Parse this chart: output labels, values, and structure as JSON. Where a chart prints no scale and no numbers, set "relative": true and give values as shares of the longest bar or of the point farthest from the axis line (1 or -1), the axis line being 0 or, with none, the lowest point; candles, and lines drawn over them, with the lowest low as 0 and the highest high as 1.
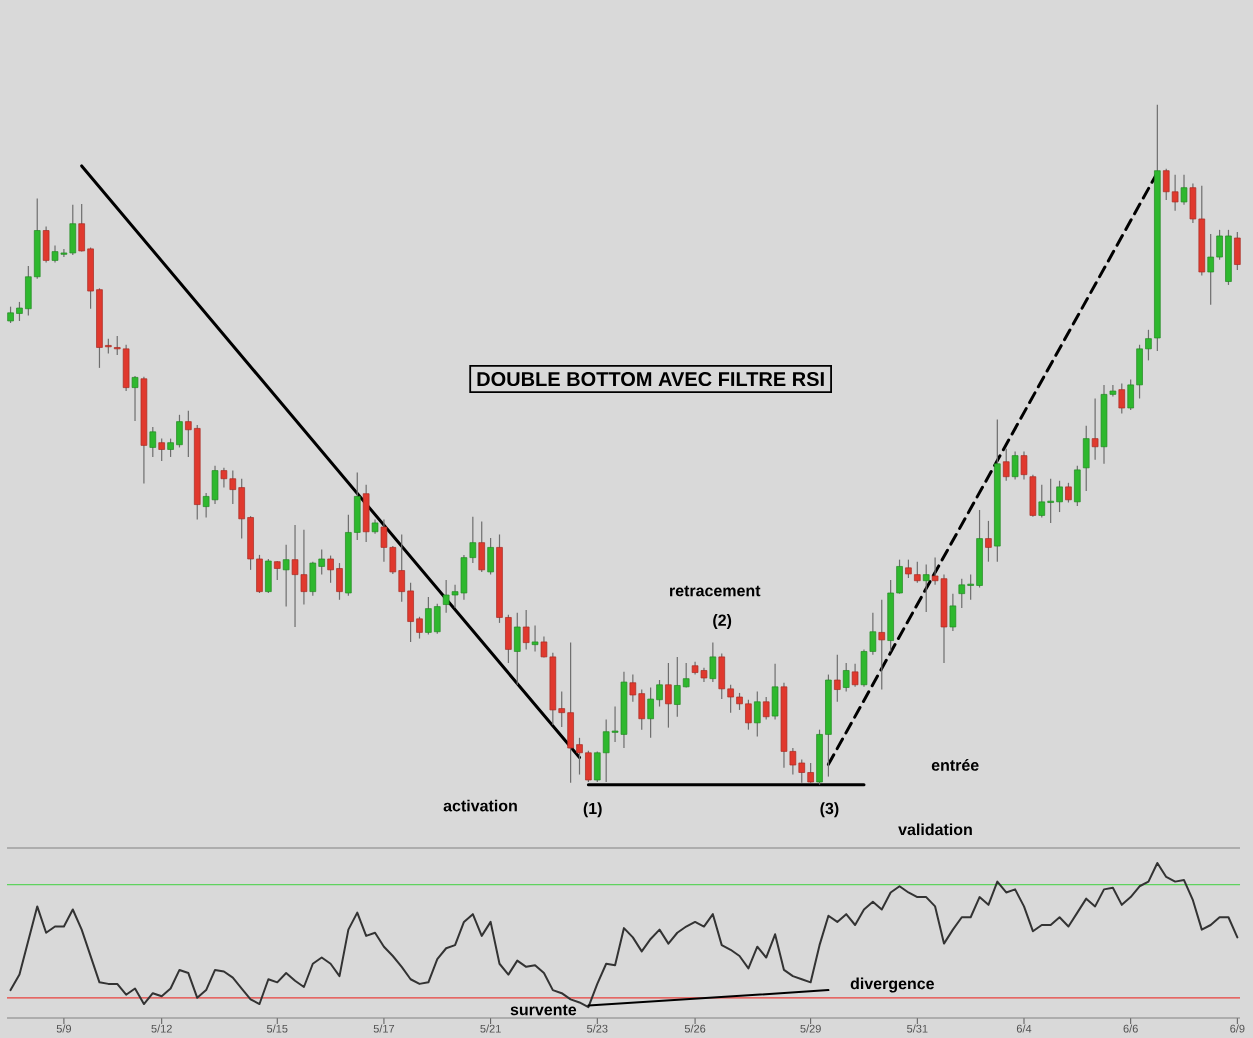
{
  "chart_data": [
    {
      "type": "candlestick",
      "title": "DOUBLE BOTTOM AVEC FILTRE RSI",
      "relative": true,
      "tick_labels": false,
      "categories": [
        null,
        null,
        null,
        null,
        null,
        null,
        null,
        null,
        null,
        null,
        null,
        null,
        null,
        null,
        null,
        null,
        null,
        null,
        null,
        null,
        null,
        null,
        null,
        null,
        null,
        null,
        null,
        null,
        null,
        null,
        null,
        null,
        null,
        null,
        null,
        null,
        null,
        null,
        null,
        null,
        null,
        null,
        null,
        null,
        null,
        null,
        null,
        null,
        null,
        null,
        null,
        null,
        null,
        null,
        null,
        null,
        null,
        null,
        null,
        null,
        null,
        null,
        null,
        null,
        null,
        null,
        null,
        null,
        null,
        null,
        null,
        null,
        null,
        null,
        null,
        null,
        null,
        null,
        null,
        null,
        null,
        null,
        null,
        null,
        null,
        null,
        null,
        null,
        null,
        null,
        null,
        null,
        null,
        null,
        null,
        null,
        null,
        null,
        null,
        null,
        null,
        null,
        null,
        null,
        null,
        null,
        null,
        null,
        null,
        null,
        null,
        null,
        null,
        null,
        null,
        null,
        null,
        null,
        null,
        null,
        null,
        null,
        null,
        null,
        null,
        null,
        null,
        null,
        null,
        null,
        null,
        null,
        null,
        null,
        null,
        null,
        null,
        null,
        null
      ],
      "ohlc": [
        [
          0.682,
          0.703,
          0.679,
          0.694
        ],
        [
          0.693,
          0.71,
          0.682,
          0.701
        ],
        [
          0.7,
          0.763,
          0.69,
          0.747
        ],
        [
          0.747,
          0.862,
          0.744,
          0.815
        ],
        [
          0.815,
          0.821,
          0.768,
          0.771
        ],
        [
          0.771,
          0.793,
          0.768,
          0.784
        ],
        [
          0.78,
          0.788,
          0.776,
          0.782
        ],
        [
          0.782,
          0.853,
          0.779,
          0.825
        ],
        [
          0.825,
          0.854,
          0.784,
          0.785
        ],
        [
          0.788,
          0.79,
          0.7,
          0.726
        ],
        [
          0.728,
          0.73,
          0.613,
          0.643
        ],
        [
          0.646,
          0.656,
          0.634,
          0.644
        ],
        [
          0.643,
          0.66,
          0.632,
          0.641
        ],
        [
          0.641,
          0.647,
          0.579,
          0.584
        ],
        [
          0.584,
          0.601,
          0.535,
          0.599
        ],
        [
          0.597,
          0.6,
          0.443,
          0.499
        ],
        [
          0.496,
          0.526,
          0.482,
          0.519
        ],
        [
          0.503,
          0.509,
          0.476,
          0.493
        ],
        [
          0.493,
          0.509,
          0.482,
          0.503
        ],
        [
          0.5,
          0.544,
          0.496,
          0.534
        ],
        [
          0.534,
          0.55,
          0.482,
          0.522
        ],
        [
          0.524,
          0.529,
          0.39,
          0.412
        ],
        [
          0.409,
          0.429,
          0.393,
          0.424
        ],
        [
          0.419,
          0.469,
          0.413,
          0.462
        ],
        [
          0.462,
          0.466,
          0.437,
          0.45
        ],
        [
          0.45,
          0.462,
          0.413,
          0.434
        ],
        [
          0.437,
          0.45,
          0.362,
          0.391
        ],
        [
          0.393,
          0.395,
          0.316,
          0.332
        ],
        [
          0.332,
          0.338,
          0.282,
          0.284
        ],
        [
          0.284,
          0.332,
          0.282,
          0.329
        ],
        [
          0.328,
          0.329,
          0.301,
          0.318
        ],
        [
          0.316,
          0.353,
          0.262,
          0.331
        ],
        [
          0.331,
          0.382,
          0.232,
          0.309
        ],
        [
          0.309,
          0.375,
          0.265,
          0.284
        ],
        [
          0.284,
          0.328,
          0.278,
          0.326
        ],
        [
          0.321,
          0.346,
          0.309,
          0.332
        ],
        [
          0.332,
          0.337,
          0.297,
          0.316
        ],
        [
          0.318,
          0.326,
          0.272,
          0.284
        ],
        [
          0.282,
          0.397,
          0.278,
          0.371
        ],
        [
          0.371,
          0.459,
          0.36,
          0.424
        ],
        [
          0.428,
          0.441,
          0.357,
          0.372
        ],
        [
          0.372,
          0.39,
          0.369,
          0.385
        ],
        [
          0.379,
          0.39,
          0.328,
          0.349
        ],
        [
          0.349,
          0.351,
          0.31,
          0.313
        ],
        [
          0.315,
          0.368,
          0.269,
          0.284
        ],
        [
          0.285,
          0.297,
          0.21,
          0.24
        ],
        [
          0.244,
          0.247,
          0.215,
          0.224
        ],
        [
          0.224,
          0.276,
          0.221,
          0.259
        ],
        [
          0.225,
          0.266,
          0.222,
          0.262
        ],
        [
          0.265,
          0.301,
          0.253,
          0.279
        ],
        [
          0.279,
          0.294,
          0.26,
          0.284
        ],
        [
          0.282,
          0.338,
          0.272,
          0.334
        ],
        [
          0.334,
          0.394,
          0.326,
          0.356
        ],
        [
          0.356,
          0.387,
          0.313,
          0.316
        ],
        [
          0.313,
          0.363,
          0.309,
          0.349
        ],
        [
          0.349,
          0.368,
          0.238,
          0.246
        ],
        [
          0.246,
          0.25,
          0.179,
          0.199
        ],
        [
          0.196,
          0.253,
          0.147,
          0.232
        ],
        [
          0.232,
          0.257,
          0.199,
          0.209
        ],
        [
          0.206,
          0.234,
          0.196,
          0.21
        ],
        [
          0.21,
          0.218,
          0.187,
          0.188
        ],
        [
          0.188,
          0.194,
          0.088,
          0.11
        ],
        [
          0.112,
          0.137,
          0.085,
          0.106
        ],
        [
          0.106,
          0.209,
          0.003,
          0.054
        ],
        [
          0.059,
          0.069,
          0.015,
          0.047
        ],
        [
          0.047,
          0.05,
          0.004,
          0.007
        ],
        [
          0.007,
          0.049,
          0.004,
          0.047
        ],
        [
          0.047,
          0.096,
          0.004,
          0.078
        ],
        [
          0.077,
          0.115,
          0.063,
          0.079
        ],
        [
          0.074,
          0.166,
          0.054,
          0.151
        ],
        [
          0.15,
          0.162,
          0.122,
          0.132
        ],
        [
          0.134,
          0.14,
          0.081,
          0.097
        ],
        [
          0.097,
          0.143,
          0.069,
          0.126
        ],
        [
          0.125,
          0.154,
          0.115,
          0.147
        ],
        [
          0.147,
          0.179,
          0.084,
          0.119
        ],
        [
          0.118,
          0.188,
          0.1,
          0.146
        ],
        [
          0.144,
          0.179,
          0.143,
          0.156
        ],
        [
          0.175,
          0.181,
          0.162,
          0.165
        ],
        [
          0.168,
          0.172,
          0.151,
          0.157
        ],
        [
          0.156,
          0.209,
          0.151,
          0.188
        ],
        [
          0.188,
          0.193,
          0.126,
          0.141
        ],
        [
          0.141,
          0.147,
          0.106,
          0.129
        ],
        [
          0.129,
          0.135,
          0.11,
          0.119
        ],
        [
          0.119,
          0.125,
          0.081,
          0.091
        ],
        [
          0.091,
          0.137,
          0.071,
          0.122
        ],
        [
          0.122,
          0.129,
          0.096,
          0.1
        ],
        [
          0.101,
          0.178,
          0.096,
          0.144
        ],
        [
          0.144,
          0.15,
          0.025,
          0.049
        ],
        [
          0.049,
          0.054,
          0.015,
          0.029
        ],
        [
          0.032,
          0.037,
          0.003,
          0.018
        ],
        [
          0.018,
          0.032,
          0.003,
          0.004
        ],
        [
          0.004,
          0.081,
          0,
          0.074
        ],
        [
          0.074,
          0.162,
          0.012,
          0.154
        ],
        [
          0.154,
          0.191,
          0.122,
          0.14
        ],
        [
          0.143,
          0.179,
          0.137,
          0.168
        ],
        [
          0.166,
          0.178,
          0.144,
          0.147
        ],
        [
          0.147,
          0.199,
          0.144,
          0.196
        ],
        [
          0.196,
          0.253,
          0.191,
          0.225
        ],
        [
          0.224,
          0.272,
          0.14,
          0.213
        ],
        [
          0.212,
          0.301,
          0.196,
          0.282
        ],
        [
          0.282,
          0.331,
          0.281,
          0.321
        ],
        [
          0.319,
          0.331,
          0.304,
          0.31
        ],
        [
          0.309,
          0.328,
          0.297,
          0.3
        ],
        [
          0.3,
          0.324,
          0.254,
          0.309
        ],
        [
          0.307,
          0.334,
          0.294,
          0.3
        ],
        [
          0.303,
          0.309,
          0.179,
          0.232
        ],
        [
          0.232,
          0.281,
          0.226,
          0.263
        ],
        [
          0.281,
          0.303,
          0.26,
          0.294
        ],
        [
          0.293,
          0.309,
          0.272,
          0.295
        ],
        [
          0.293,
          0.404,
          0.29,
          0.362
        ],
        [
          0.362,
          0.388,
          0.328,
          0.349
        ],
        [
          0.351,
          0.537,
          0.328,
          0.472
        ],
        [
          0.475,
          0.494,
          0.447,
          0.453
        ],
        [
          0.453,
          0.49,
          0.449,
          0.484
        ],
        [
          0.484,
          0.49,
          0.449,
          0.456
        ],
        [
          0.453,
          0.456,
          0.394,
          0.396
        ],
        [
          0.396,
          0.441,
          0.393,
          0.416
        ],
        [
          0.415,
          0.45,
          0.385,
          0.417
        ],
        [
          0.416,
          0.447,
          0.401,
          0.438
        ],
        [
          0.438,
          0.444,
          0.415,
          0.419
        ],
        [
          0.416,
          0.469,
          0.41,
          0.463
        ],
        [
          0.466,
          0.528,
          0.432,
          0.509
        ],
        [
          0.509,
          0.568,
          0.478,
          0.497
        ],
        [
          0.497,
          0.588,
          0.472,
          0.574
        ],
        [
          0.574,
          0.588,
          0.571,
          0.579
        ],
        [
          0.581,
          0.59,
          0.546,
          0.554
        ],
        [
          0.554,
          0.596,
          0.551,
          0.588
        ],
        [
          0.588,
          0.647,
          0.568,
          0.641
        ],
        [
          0.641,
          0.669,
          0.624,
          0.656
        ],
        [
          0.657,
          1.0,
          0.638,
          0.903
        ],
        [
          0.903,
          0.906,
          0.86,
          0.872
        ],
        [
          0.872,
          0.897,
          0.844,
          0.857
        ],
        [
          0.857,
          0.897,
          0.853,
          0.878
        ],
        [
          0.878,
          0.884,
          0.826,
          0.832
        ],
        [
          0.832,
          0.881,
          0.749,
          0.754
        ],
        [
          0.754,
          0.81,
          0.706,
          0.776
        ],
        [
          0.776,
          0.816,
          0.772,
          0.807
        ],
        [
          0.74,
          0.816,
          0.735,
          0.807
        ],
        [
          0.804,
          0.813,
          0.757,
          0.765
        ]
      ],
      "colors": [
        "#2eb82e",
        "#2eb82e",
        "#2eb82e",
        "#2eb82e",
        "#e0392e",
        "#2eb82e",
        "#2eb82e",
        "#2eb82e",
        "#e0392e",
        "#e0392e",
        "#e0392e",
        "#e0392e",
        "#e0392e",
        "#e0392e",
        "#2eb82e",
        "#e0392e",
        "#2eb82e",
        "#e0392e",
        "#2eb82e",
        "#2eb82e",
        "#e0392e",
        "#e0392e",
        "#2eb82e",
        "#2eb82e",
        "#e0392e",
        "#e0392e",
        "#e0392e",
        "#e0392e",
        "#e0392e",
        "#2eb82e",
        "#e0392e",
        "#2eb82e",
        "#e0392e",
        "#e0392e",
        "#2eb82e",
        "#2eb82e",
        "#e0392e",
        "#e0392e",
        "#2eb82e",
        "#2eb82e",
        "#e0392e",
        "#2eb82e",
        "#e0392e",
        "#e0392e",
        "#e0392e",
        "#e0392e",
        "#e0392e",
        "#2eb82e",
        "#2eb82e",
        "#2eb82e",
        "#2eb82e",
        "#2eb82e",
        "#2eb82e",
        "#e0392e",
        "#2eb82e",
        "#e0392e",
        "#e0392e",
        "#2eb82e",
        "#e0392e",
        "#2eb82e",
        "#e0392e",
        "#e0392e",
        "#e0392e",
        "#e0392e",
        "#e0392e",
        "#e0392e",
        "#2eb82e",
        "#2eb82e",
        "#2eb82e",
        "#2eb82e",
        "#e0392e",
        "#e0392e",
        "#2eb82e",
        "#2eb82e",
        "#e0392e",
        "#2eb82e",
        "#2eb82e",
        "#e0392e",
        "#e0392e",
        "#2eb82e",
        "#e0392e",
        "#e0392e",
        "#e0392e",
        "#e0392e",
        "#2eb82e",
        "#e0392e",
        "#2eb82e",
        "#e0392e",
        "#e0392e",
        "#e0392e",
        "#e0392e",
        "#2eb82e",
        "#2eb82e",
        "#e0392e",
        "#2eb82e",
        "#e0392e",
        "#2eb82e",
        "#2eb82e",
        "#e0392e",
        "#2eb82e",
        "#2eb82e",
        "#e0392e",
        "#e0392e",
        "#2eb82e",
        "#e0392e",
        "#e0392e",
        "#2eb82e",
        "#2eb82e",
        "#2eb82e",
        "#2eb82e",
        "#e0392e",
        "#2eb82e",
        "#e0392e",
        "#2eb82e",
        "#e0392e",
        "#e0392e",
        "#2eb82e",
        "#2eb82e",
        "#2eb82e",
        "#e0392e",
        "#2eb82e",
        "#2eb82e",
        "#e0392e",
        "#2eb82e",
        "#2eb82e",
        "#e0392e",
        "#2eb82e",
        "#2eb82e",
        "#2eb82e",
        "#2eb82e",
        "#e0392e",
        "#e0392e",
        "#2eb82e",
        "#e0392e",
        "#e0392e",
        "#2eb82e",
        "#2eb82e",
        "#2eb82e",
        "#e0392e"
      ],
      "series": [
        {
          "type": "line",
          "values": [
            null,
            null,
            null,
            null,
            null,
            null,
            null,
            null,
            0.91,
            null,
            null,
            null,
            null,
            null,
            null,
            null,
            null,
            null,
            null,
            null,
            null,
            null,
            null,
            null,
            null,
            null,
            null,
            null,
            null,
            null,
            null,
            null,
            null,
            null,
            null,
            null,
            null,
            null,
            null,
            null,
            null,
            null,
            null,
            null,
            null,
            null,
            null,
            null,
            null,
            null,
            null,
            null,
            null,
            null,
            null,
            null,
            null,
            null,
            null,
            null,
            null,
            null,
            null,
            null,
            0.04,
            null,
            null,
            null,
            null,
            null,
            null,
            null,
            null,
            null,
            null,
            null,
            null,
            null,
            null,
            null,
            null,
            null,
            null,
            null,
            null,
            null,
            null,
            null,
            null,
            null,
            null,
            null,
            null,
            null,
            null,
            null,
            null,
            null,
            null,
            null,
            null,
            null,
            null,
            null,
            null,
            null,
            null,
            null,
            null,
            null,
            null,
            null,
            null,
            null,
            null,
            null,
            null,
            null,
            null,
            null,
            null,
            null,
            null,
            null,
            null,
            null,
            null,
            null,
            null,
            null,
            null,
            null,
            null,
            null,
            null,
            null,
            null,
            null,
            null
          ],
          "color": "#000000",
          "line_style": "solid"
        },
        {
          "type": "line",
          "values": [
            null,
            null,
            null,
            null,
            null,
            null,
            null,
            null,
            null,
            null,
            null,
            null,
            null,
            null,
            null,
            null,
            null,
            null,
            null,
            null,
            null,
            null,
            null,
            null,
            null,
            null,
            null,
            null,
            null,
            null,
            null,
            null,
            null,
            null,
            null,
            null,
            null,
            null,
            null,
            null,
            null,
            null,
            null,
            null,
            null,
            null,
            null,
            null,
            null,
            null,
            null,
            null,
            null,
            null,
            null,
            null,
            null,
            null,
            null,
            null,
            null,
            null,
            null,
            null,
            null,
            0,
            null,
            null,
            null,
            null,
            null,
            null,
            null,
            null,
            null,
            null,
            null,
            null,
            null,
            null,
            null,
            null,
            null,
            null,
            null,
            null,
            null,
            null,
            null,
            null,
            null,
            null,
            null,
            null,
            null,
            null,
            0,
            null,
            null,
            null,
            null,
            null,
            null,
            null,
            null,
            null,
            null,
            null,
            null,
            null,
            null,
            null,
            null,
            null,
            null,
            null,
            null,
            null,
            null,
            null,
            null,
            null,
            null,
            null,
            null,
            null,
            null,
            null,
            null,
            null,
            null,
            null,
            null,
            null,
            null,
            null,
            null,
            null,
            null
          ],
          "color": "#000000",
          "line_style": "solid"
        },
        {
          "type": "line",
          "values": [
            null,
            null,
            null,
            null,
            null,
            null,
            null,
            null,
            null,
            null,
            null,
            null,
            null,
            null,
            null,
            null,
            null,
            null,
            null,
            null,
            null,
            null,
            null,
            null,
            null,
            null,
            null,
            null,
            null,
            null,
            null,
            null,
            null,
            null,
            null,
            null,
            null,
            null,
            null,
            null,
            null,
            null,
            null,
            null,
            null,
            null,
            null,
            null,
            null,
            null,
            null,
            null,
            null,
            null,
            null,
            null,
            null,
            null,
            null,
            null,
            null,
            null,
            null,
            null,
            null,
            null,
            null,
            null,
            null,
            null,
            null,
            null,
            null,
            null,
            null,
            null,
            null,
            null,
            null,
            null,
            null,
            null,
            null,
            null,
            null,
            null,
            null,
            null,
            null,
            null,
            null,
            null,
            0.03,
            null,
            null,
            null,
            null,
            null,
            null,
            null,
            null,
            null,
            null,
            null,
            null,
            null,
            null,
            null,
            null,
            null,
            null,
            null,
            null,
            null,
            null,
            null,
            null,
            null,
            null,
            null,
            null,
            null,
            null,
            null,
            null,
            null,
            null,
            null,
            null,
            0.9,
            null,
            null,
            null,
            null,
            null,
            null,
            null,
            null,
            null
          ],
          "color": "#000000",
          "line_style": "dashed"
        }
      ],
      "annotations": [
        "retracement",
        "(2)",
        "activation",
        "(1)",
        "(3)",
        "entrée",
        "validation"
      ]
    },
    {
      "type": "line",
      "relative": true,
      "categories": [
        null,
        null,
        null,
        null,
        null,
        null,
        "5/9",
        null,
        null,
        null,
        null,
        null,
        null,
        null,
        null,
        null,
        null,
        "5/12",
        null,
        null,
        null,
        null,
        null,
        null,
        null,
        null,
        null,
        null,
        null,
        null,
        "5/15",
        null,
        null,
        null,
        null,
        null,
        null,
        null,
        null,
        null,
        null,
        null,
        "5/17",
        null,
        null,
        null,
        null,
        null,
        null,
        null,
        null,
        null,
        null,
        null,
        "5/21",
        null,
        null,
        null,
        null,
        null,
        null,
        null,
        null,
        null,
        null,
        null,
        "5/23",
        null,
        null,
        null,
        null,
        null,
        null,
        null,
        null,
        null,
        null,
        "5/26",
        null,
        null,
        null,
        null,
        null,
        null,
        null,
        null,
        null,
        null,
        null,
        null,
        "5/29",
        null,
        null,
        null,
        null,
        null,
        null,
        null,
        null,
        null,
        null,
        null,
        "5/31",
        null,
        null,
        null,
        null,
        null,
        null,
        null,
        null,
        null,
        null,
        null,
        "6/4",
        null,
        null,
        null,
        null,
        null,
        null,
        null,
        null,
        null,
        null,
        null,
        "6/6",
        null,
        null,
        null,
        null,
        null,
        null,
        null,
        null,
        null,
        null,
        null,
        "6/9"
      ],
      "series": [
        {
          "color": "#333333",
          "values": [
            0.18,
            0.28,
            0.5,
            0.72,
            0.55,
            0.59,
            0.59,
            0.7,
            0.57,
            0.4,
            0.23,
            0.22,
            0.22,
            0.15,
            0.19,
            0.09,
            0.16,
            0.14,
            0.19,
            0.31,
            0.29,
            0.13,
            0.18,
            0.31,
            0.3,
            0.26,
            0.19,
            0.12,
            0.09,
            0.25,
            0.23,
            0.29,
            0.24,
            0.2,
            0.35,
            0.39,
            0.35,
            0.27,
            0.57,
            0.68,
            0.53,
            0.55,
            0.46,
            0.4,
            0.33,
            0.25,
            0.22,
            0.23,
            0.38,
            0.45,
            0.47,
            0.62,
            0.67,
            0.53,
            0.62,
            0.35,
            0.28,
            0.37,
            0.33,
            0.34,
            0.29,
            0.18,
            0.16,
            0.12,
            0.1,
            0.07,
            0.22,
            0.35,
            0.34,
            0.58,
            0.52,
            0.43,
            0.51,
            0.57,
            0.48,
            0.55,
            0.59,
            0.62,
            0.59,
            0.67,
            0.47,
            0.44,
            0.4,
            0.32,
            0.46,
            0.39,
            0.54,
            0.31,
            0.27,
            0.25,
            0.23,
            0.47,
            0.66,
            0.62,
            0.67,
            0.6,
            0.7,
            0.75,
            0.7,
            0.81,
            0.85,
            0.81,
            0.78,
            0.78,
            0.72,
            0.48,
            0.57,
            0.65,
            0.65,
            0.78,
            0.73,
            0.88,
            0.81,
            0.83,
            0.72,
            0.56,
            0.6,
            0.6,
            0.65,
            0.59,
            0.68,
            0.77,
            0.72,
            0.83,
            0.84,
            0.73,
            0.78,
            0.85,
            0.88,
            1.0,
            0.91,
            0.88,
            0.89,
            0.76,
            0.57,
            0.6,
            0.65,
            0.65,
            0.52
          ]
        },
        {
          "type": "line",
          "values": [
            null,
            null,
            null,
            null,
            null,
            null,
            null,
            null,
            null,
            null,
            null,
            null,
            null,
            null,
            null,
            null,
            null,
            null,
            null,
            null,
            null,
            null,
            null,
            null,
            null,
            null,
            null,
            null,
            null,
            null,
            null,
            null,
            null,
            null,
            null,
            null,
            null,
            null,
            null,
            null,
            null,
            null,
            null,
            null,
            null,
            null,
            null,
            null,
            null,
            null,
            null,
            null,
            null,
            null,
            null,
            null,
            null,
            null,
            null,
            null,
            null,
            null,
            null,
            null,
            null,
            0.08,
            null,
            null,
            null,
            null,
            null,
            null,
            null,
            null,
            null,
            null,
            null,
            null,
            null,
            null,
            null,
            null,
            null,
            null,
            null,
            null,
            null,
            null,
            null,
            null,
            null,
            null,
            0.18,
            null,
            null,
            null,
            null,
            null,
            null,
            null,
            null,
            null,
            null,
            null,
            null,
            null,
            null,
            null,
            null,
            null,
            null,
            null,
            null,
            null,
            null,
            null,
            null,
            null,
            null,
            null,
            null,
            null,
            null,
            null,
            null,
            null,
            null,
            null,
            null,
            null,
            null,
            null,
            null,
            null,
            null,
            null,
            null,
            null,
            null
          ],
          "color": "#000000"
        }
      ],
      "ref_lines": [
        {
          "axis": "y",
          "value": 0.86,
          "color": "#5fd35f"
        },
        {
          "axis": "y",
          "value": 0.13,
          "color": "#e8413c"
        }
      ],
      "annotations": [
        "survente",
        "divergence"
      ]
    }
  ]
}
